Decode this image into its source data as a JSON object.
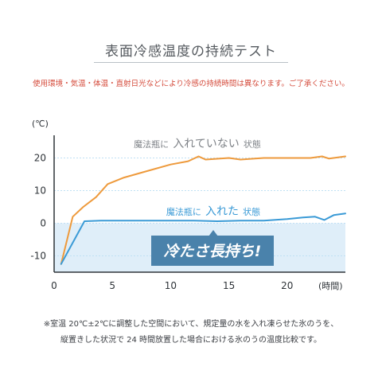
{
  "title": "表面冷感温度の持続テスト",
  "notice": "使用環境・気温・体温・直射日光などにより冷感の持続時間は異なります。ご了承ください。",
  "footnote_line1": "※室温 20℃±2℃に調整した空間において、規定量の水を入れ凍らせた氷のうを、",
  "footnote_line2": "縦置きした状況で 24 時間放置した場合における氷のうの温度比較です。",
  "colors": {
    "with_line": "#3a9ad6",
    "without_line": "#ee9a3c",
    "cold_band": "#dfeef9",
    "badge": "#4a82ab",
    "grid": "#bfe0f4"
  },
  "chart_data": {
    "type": "line",
    "ylabel": "(℃)",
    "xlabel": "(時間)",
    "xlim": [
      0,
      25
    ],
    "ylim": [
      -15,
      25
    ],
    "xticks": [
      "0",
      "5",
      "10",
      "15",
      "20"
    ],
    "yticks": [
      "20",
      "10",
      "0",
      "-10"
    ],
    "cold_region_below": 0,
    "series": [
      {
        "name_prefix": "魔法瓶に",
        "name_emphasis": "入れていない",
        "name_suffix": "状態",
        "color": "orange",
        "points": [
          [
            0.6,
            -12.5
          ],
          [
            1.6,
            2
          ],
          [
            2.5,
            5
          ],
          [
            3.6,
            8
          ],
          [
            4.6,
            12
          ],
          [
            6,
            14
          ],
          [
            8,
            16
          ],
          [
            10,
            18
          ],
          [
            11.5,
            19
          ],
          [
            12.4,
            20.5
          ],
          [
            13,
            19.5
          ],
          [
            15,
            20
          ],
          [
            16,
            19.5
          ],
          [
            18,
            20
          ],
          [
            20,
            20
          ],
          [
            22,
            20
          ],
          [
            23,
            20.5
          ],
          [
            23.6,
            19.8
          ],
          [
            25,
            20.5
          ]
        ]
      },
      {
        "name_prefix": "魔法瓶に",
        "name_emphasis": "入れた",
        "name_suffix": "状態",
        "color": "blue",
        "points": [
          [
            0.6,
            -12.5
          ],
          [
            2.6,
            0.6
          ],
          [
            4,
            0.8
          ],
          [
            6,
            0.8
          ],
          [
            8,
            0.8
          ],
          [
            10,
            0.8
          ],
          [
            12,
            0.8
          ],
          [
            14,
            0.6
          ],
          [
            16,
            0.8
          ],
          [
            18,
            0.8
          ],
          [
            20,
            1.3
          ],
          [
            21.5,
            1.8
          ],
          [
            22.4,
            2
          ],
          [
            23.2,
            1
          ],
          [
            24,
            2.5
          ],
          [
            25,
            3
          ]
        ]
      }
    ],
    "badge_text": "冷たさ長持ち!"
  }
}
